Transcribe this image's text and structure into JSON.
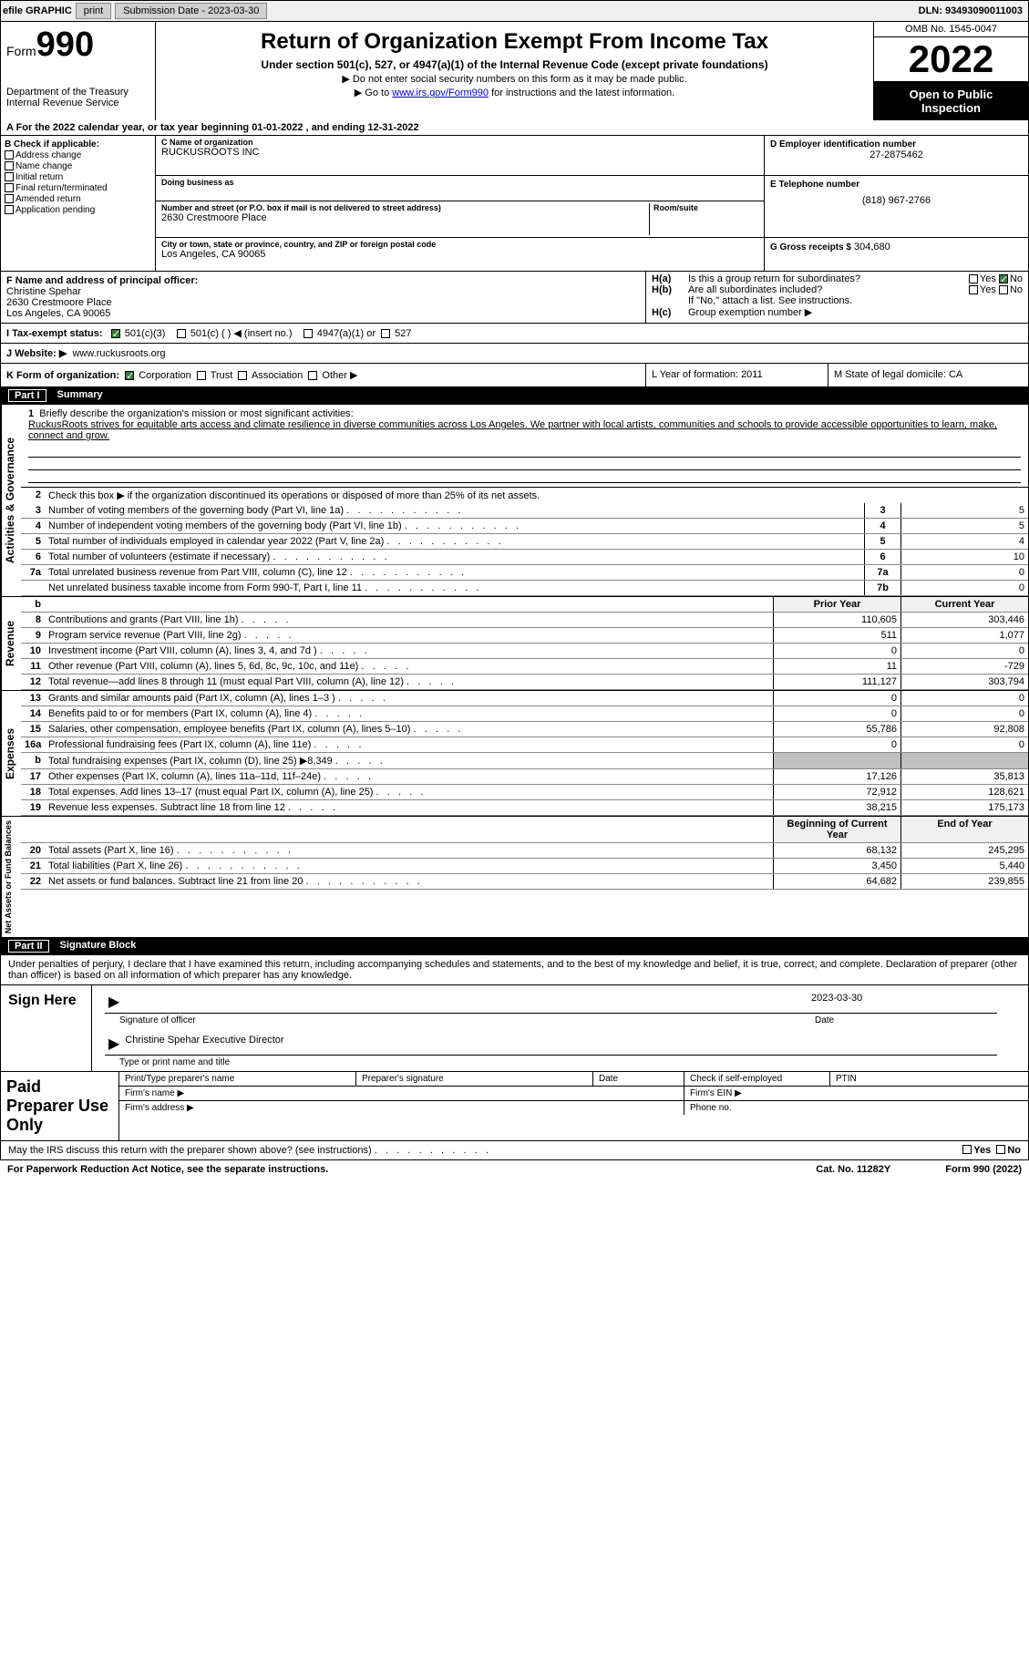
{
  "topbar": {
    "efile": "efile GRAPHIC",
    "print": "print",
    "submission": "Submission Date - 2023-03-30",
    "dln": "DLN: 93493090011003"
  },
  "header": {
    "form_word": "Form",
    "form_no": "990",
    "dept": "Department of the Treasury",
    "irs": "Internal Revenue Service",
    "title": "Return of Organization Exempt From Income Tax",
    "subtitle": "Under section 501(c), 527, or 4947(a)(1) of the Internal Revenue Code (except private foundations)",
    "note1": "▶ Do not enter social security numbers on this form as it may be made public.",
    "note2_pre": "▶ Go to ",
    "note2_link": "www.irs.gov/Form990",
    "note2_post": " for instructions and the latest information.",
    "omb": "OMB No. 1545-0047",
    "year": "2022",
    "insp1": "Open to Public",
    "insp2": "Inspection"
  },
  "lineA": "A For the 2022 calendar year, or tax year beginning 01-01-2022    , and ending 12-31-2022",
  "boxB": {
    "title": "B Check if applicable:",
    "opts": [
      "Address change",
      "Name change",
      "Initial return",
      "Final return/terminated",
      "Amended return",
      "Application pending"
    ]
  },
  "boxC": {
    "label_name": "C Name of organization",
    "name": "RUCKUSROOTS INC",
    "label_dba": "Doing business as",
    "dba": "",
    "label_addr": "Number and street (or P.O. box if mail is not delivered to street address)",
    "room_lbl": "Room/suite",
    "addr": "2630 Crestmoore Place",
    "label_city": "City or town, state or province, country, and ZIP or foreign postal code",
    "city": "Los Angeles, CA  90065"
  },
  "boxD": {
    "ein_lbl": "D Employer identification number",
    "ein": "27-2875462",
    "tel_lbl": "E Telephone number",
    "tel": "(818) 967-2766",
    "gross_lbl": "G Gross receipts $",
    "gross": "304,680"
  },
  "boxF": {
    "label": "F Name and address of principal officer:",
    "name": "Christine Spehar",
    "addr1": "2630 Crestmoore Place",
    "addr2": "Los Angeles, CA  90065"
  },
  "boxH": {
    "a_lbl": "H(a)",
    "a_txt": "Is this a group return for subordinates?",
    "b_lbl": "H(b)",
    "b_txt": "Are all subordinates included?",
    "b_note": "If \"No,\" attach a list. See instructions.",
    "c_lbl": "H(c)",
    "c_txt": "Group exemption number ▶",
    "yes": "Yes",
    "no": "No"
  },
  "taxStatus": {
    "label": "I    Tax-exempt status:",
    "o1": "501(c)(3)",
    "o2": "501(c) (   ) ◀ (insert no.)",
    "o3": "4947(a)(1) or",
    "o4": "527"
  },
  "website": {
    "label": "J   Website: ▶",
    "url": "www.ruckusroots.org"
  },
  "lineK": {
    "label": "K Form of organization:",
    "o1": "Corporation",
    "o2": "Trust",
    "o3": "Association",
    "o4": "Other ▶"
  },
  "lineL": {
    "label": "L Year of formation:",
    "val": "2011"
  },
  "lineM": {
    "label": "M State of legal domicile:",
    "val": "CA"
  },
  "part1": {
    "title": "Part I",
    "name": "Summary",
    "side1": "Activities & Governance",
    "l1_lbl": "1",
    "l1_txt": "Briefly describe the organization's mission or most significant activities:",
    "l1_val": "RuckusRoots strives for equitable arts access and climate resilience in diverse communities across Los Angeles. We partner with local artists, communities and schools to provide accessible opportunities to learn, make, connect and grow.",
    "l2_txt": "Check this box ▶      if the organization discontinued its operations or disposed of more than 25% of its net assets.",
    "rows_gov": [
      {
        "n": "3",
        "t": "Number of voting members of the governing body (Part VI, line 1a)",
        "bx": "3",
        "v": "5"
      },
      {
        "n": "4",
        "t": "Number of independent voting members of the governing body (Part VI, line 1b)",
        "bx": "4",
        "v": "5"
      },
      {
        "n": "5",
        "t": "Total number of individuals employed in calendar year 2022 (Part V, line 2a)",
        "bx": "5",
        "v": "4"
      },
      {
        "n": "6",
        "t": "Total number of volunteers (estimate if necessary)",
        "bx": "6",
        "v": "10"
      },
      {
        "n": "7a",
        "t": "Total unrelated business revenue from Part VIII, column (C), line 12",
        "bx": "7a",
        "v": "0"
      },
      {
        "n": "",
        "t": "Net unrelated business taxable income from Form 990-T, Part I, line 11",
        "bx": "7b",
        "v": "0"
      }
    ],
    "hdr_b": "b",
    "hdr_py": "Prior Year",
    "hdr_cy": "Current Year",
    "side2": "Revenue",
    "rows_rev": [
      {
        "n": "8",
        "t": "Contributions and grants (Part VIII, line 1h)",
        "py": "110,605",
        "cy": "303,446"
      },
      {
        "n": "9",
        "t": "Program service revenue (Part VIII, line 2g)",
        "py": "511",
        "cy": "1,077"
      },
      {
        "n": "10",
        "t": "Investment income (Part VIII, column (A), lines 3, 4, and 7d )",
        "py": "0",
        "cy": "0"
      },
      {
        "n": "11",
        "t": "Other revenue (Part VIII, column (A), lines 5, 6d, 8c, 9c, 10c, and 11e)",
        "py": "11",
        "cy": "-729"
      },
      {
        "n": "12",
        "t": "Total revenue—add lines 8 through 11 (must equal Part VIII, column (A), line 12)",
        "py": "111,127",
        "cy": "303,794"
      }
    ],
    "side3": "Expenses",
    "rows_exp": [
      {
        "n": "13",
        "t": "Grants and similar amounts paid (Part IX, column (A), lines 1–3 )",
        "py": "0",
        "cy": "0"
      },
      {
        "n": "14",
        "t": "Benefits paid to or for members (Part IX, column (A), line 4)",
        "py": "0",
        "cy": "0"
      },
      {
        "n": "15",
        "t": "Salaries, other compensation, employee benefits (Part IX, column (A), lines 5–10)",
        "py": "55,786",
        "cy": "92,808"
      },
      {
        "n": "16a",
        "t": "Professional fundraising fees (Part IX, column (A), line 11e)",
        "py": "0",
        "cy": "0"
      },
      {
        "n": "b",
        "t": "Total fundraising expenses (Part IX, column (D), line 25) ▶8,349",
        "py": "shade",
        "cy": "shade"
      },
      {
        "n": "17",
        "t": "Other expenses (Part IX, column (A), lines 11a–11d, 11f–24e)",
        "py": "17,126",
        "cy": "35,813"
      },
      {
        "n": "18",
        "t": "Total expenses. Add lines 13–17 (must equal Part IX, column (A), line 25)",
        "py": "72,912",
        "cy": "128,621"
      },
      {
        "n": "19",
        "t": "Revenue less expenses. Subtract line 18 from line 12",
        "py": "38,215",
        "cy": "175,173"
      }
    ],
    "side4": "Net Assets or Fund Balances",
    "hdr_boy": "Beginning of Current Year",
    "hdr_eoy": "End of Year",
    "rows_na": [
      {
        "n": "20",
        "t": "Total assets (Part X, line 16)",
        "py": "68,132",
        "cy": "245,295"
      },
      {
        "n": "21",
        "t": "Total liabilities (Part X, line 26)",
        "py": "3,450",
        "cy": "5,440"
      },
      {
        "n": "22",
        "t": "Net assets or fund balances. Subtract line 21 from line 20",
        "py": "64,682",
        "cy": "239,855"
      }
    ]
  },
  "part2": {
    "title": "Part II",
    "name": "Signature Block",
    "decl": "Under penalties of perjury, I declare that I have examined this return, including accompanying schedules and statements, and to the best of my knowledge and belief, it is true, correct, and complete. Declaration of preparer (other than officer) is based on all information of which preparer has any knowledge.",
    "sign_here": "Sign Here",
    "sig_off": "Signature of officer",
    "sig_date": "2023-03-30",
    "sig_date_lbl": "Date",
    "sig_name": "Christine Spehar  Executive Director",
    "sig_name_lbl": "Type or print name and title",
    "paid": "Paid Preparer Use Only",
    "p1": "Print/Type preparer's name",
    "p2": "Preparer's signature",
    "p3": "Date",
    "p4": "Check        if self-employed",
    "p5": "PTIN",
    "firm_name": "Firm's name    ▶",
    "firm_ein": "Firm's EIN ▶",
    "firm_addr": "Firm's address ▶",
    "phone": "Phone no."
  },
  "discuss": {
    "txt": "May the IRS discuss this return with the preparer shown above? (see instructions)",
    "yes": "Yes",
    "no": "No"
  },
  "footer": {
    "pra": "For Paperwork Reduction Act Notice, see the separate instructions.",
    "cat": "Cat. No. 11282Y",
    "form": "Form 990 (2022)"
  }
}
